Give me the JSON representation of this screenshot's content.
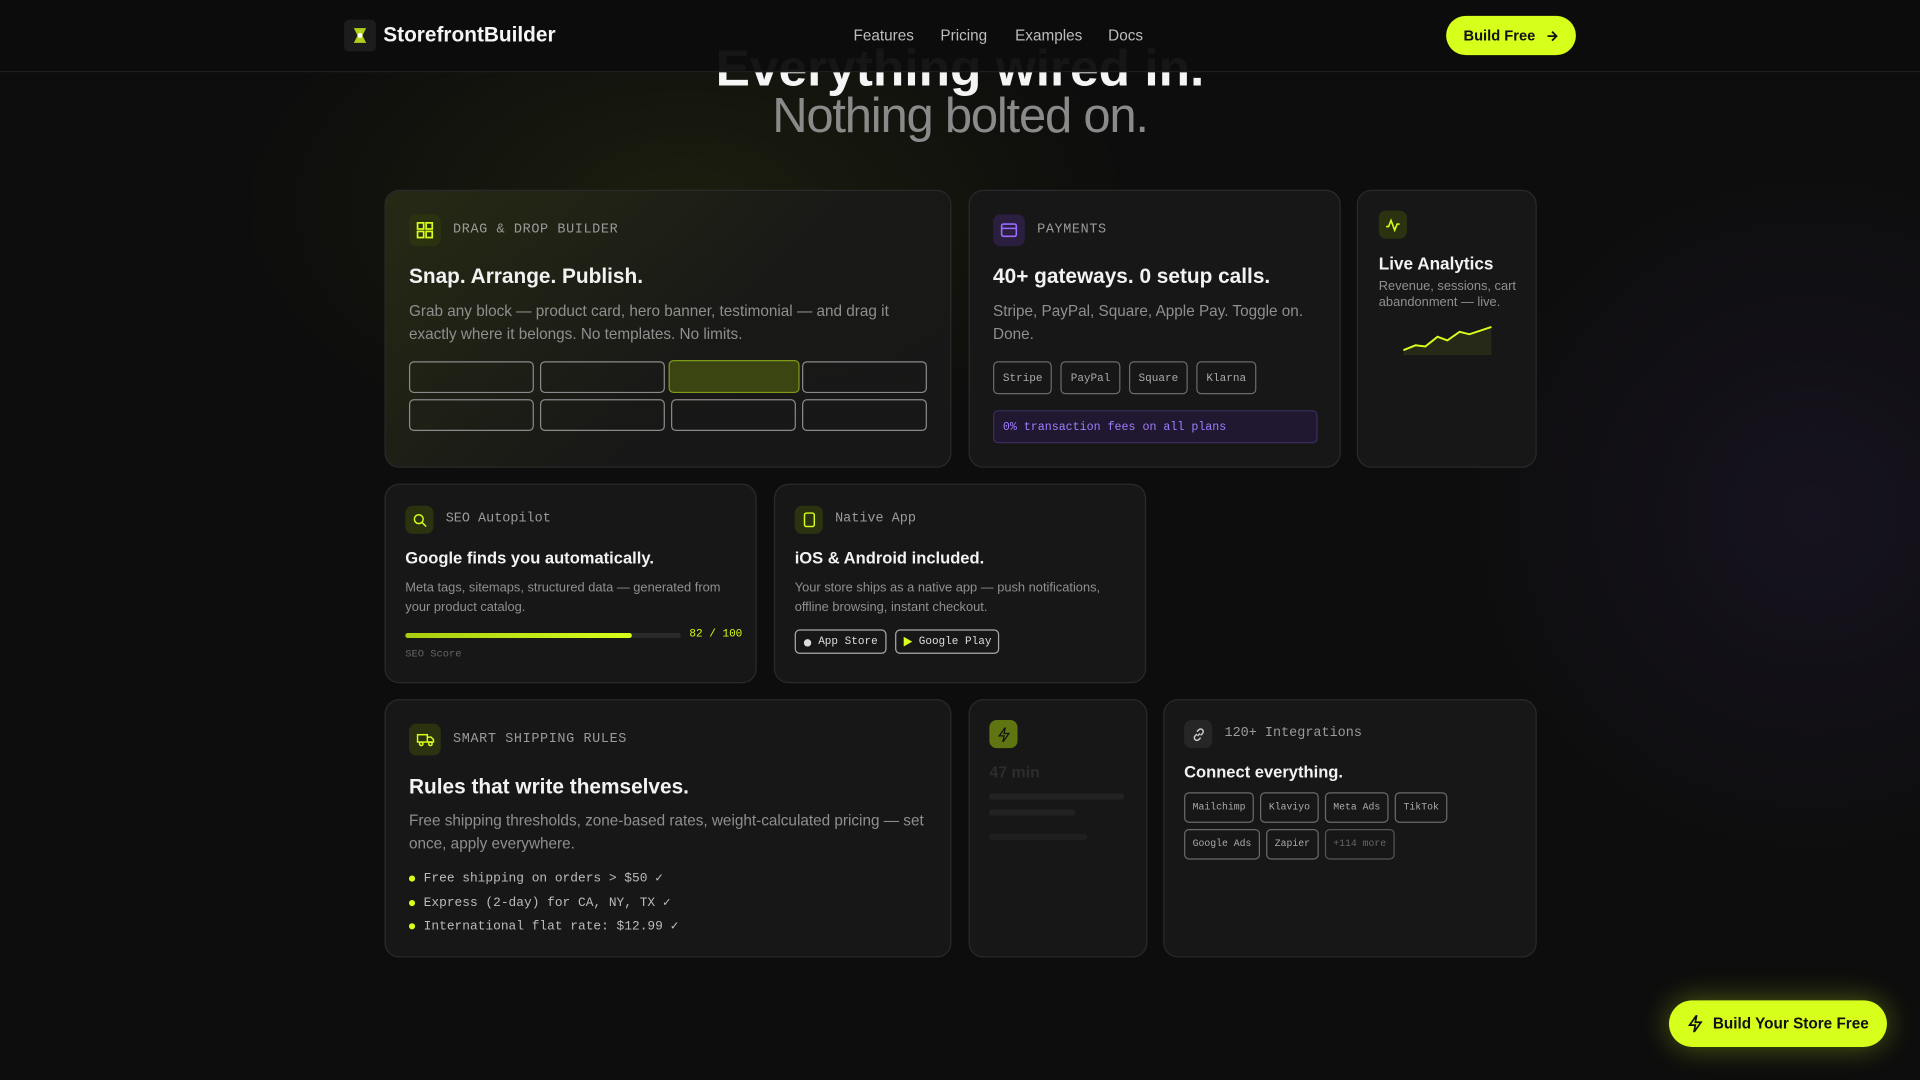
{
  "nav": {
    "brand": "StorefrontBuilder",
    "links": [
      "Features",
      "Pricing",
      "Examples",
      "Docs"
    ],
    "cta": "Build Free"
  },
  "hero": {
    "title": "Everything wired in.",
    "subtitle": "Nothing bolted on."
  },
  "cards": {
    "builder": {
      "label": "DRAG & DROP BUILDER",
      "title": "Snap. Arrange. Publish.",
      "description": "Grab any block — product card, hero banner, testimonial — and drag it exactly where it belongs. No templates. No limits."
    },
    "payments": {
      "label": "PAYMENTS",
      "title": "40+ gateways. 0 setup calls.",
      "description": "Stripe, PayPal, Square, Apple Pay. Toggle on. Done.",
      "gateways": [
        "Stripe",
        "PayPal",
        "Square",
        "Klarna"
      ],
      "note": "0% transaction fees on all plans"
    },
    "analytics": {
      "title": "Live Analytics",
      "description": "Revenue, sessions, cart abandonment — live."
    },
    "seo": {
      "label": "SEO Autopilot",
      "title": "Google finds you automatically.",
      "description": "Meta tags, sitemaps, structured data — generated from your product catalog.",
      "score": 82,
      "score_max": 100,
      "score_label": "82 / 100",
      "caption": "SEO Score"
    },
    "app": {
      "label": "Native App",
      "title": "iOS & Android included.",
      "description": "Your store ships as a native app — push notifications, offline browsing, instant checkout.",
      "stores": [
        "App Store",
        "Google Play"
      ]
    },
    "shipping": {
      "label": "SMART SHIPPING RULES",
      "title": "Rules that write themselves.",
      "description": "Free shipping thresholds, zone-based rates, weight-calculated pricing — set once, apply everywhere.",
      "rules": [
        "Free shipping on orders > $50 ✓",
        "Express (2-day) for CA, NY, TX ✓",
        "International flat rate: $12.99 ✓"
      ]
    },
    "speed": {
      "title": "47 min"
    },
    "integrations": {
      "label": "120+ Integrations",
      "title": "Connect everything.",
      "items": [
        "Mailchimp",
        "Klaviyo",
        "Meta Ads",
        "TikTok",
        "Google Ads",
        "Zapier",
        "+114 more"
      ]
    }
  },
  "floating_cta": "Build Your Store Free"
}
